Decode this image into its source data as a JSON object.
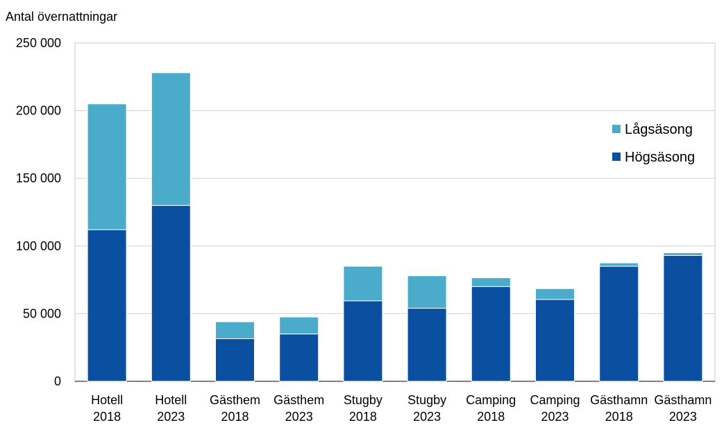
{
  "chart_data": {
    "type": "bar",
    "stacked": true,
    "ylabel": "Antal övernattningar",
    "ylim": [
      0,
      250000
    ],
    "yticks": [
      "0",
      "50 000",
      "100 000",
      "150 000",
      "200 000",
      "250 000"
    ],
    "ytick_values": [
      0,
      50000,
      100000,
      150000,
      200000,
      250000
    ],
    "grid": true,
    "legend_position": "right",
    "categories": [
      [
        "Hotell",
        "2018"
      ],
      [
        "Hotell",
        "2023"
      ],
      [
        "Gästhem",
        "2018"
      ],
      [
        "Gästhem",
        "2023"
      ],
      [
        "Stugby",
        "2018"
      ],
      [
        "Stugby",
        "2023"
      ],
      [
        "Camping",
        "2018"
      ],
      [
        "Camping",
        "2023"
      ],
      [
        "Gästhamn",
        "2018"
      ],
      [
        "Gästhamn",
        "2023"
      ]
    ],
    "series": [
      {
        "name": "Högsäsong",
        "color": "#0b4fa1",
        "values": [
          112000,
          130000,
          31500,
          35000,
          59500,
          54000,
          70000,
          60500,
          85000,
          93000
        ]
      },
      {
        "name": "Lågsäsong",
        "color": "#4aabcb",
        "values": [
          93000,
          98000,
          12500,
          12500,
          25500,
          24000,
          6500,
          8000,
          2500,
          2000
        ]
      }
    ],
    "legend": [
      {
        "name": "Lågsäsong",
        "color": "#4aabcb"
      },
      {
        "name": "Högsäsong",
        "color": "#0b4fa1"
      }
    ]
  }
}
